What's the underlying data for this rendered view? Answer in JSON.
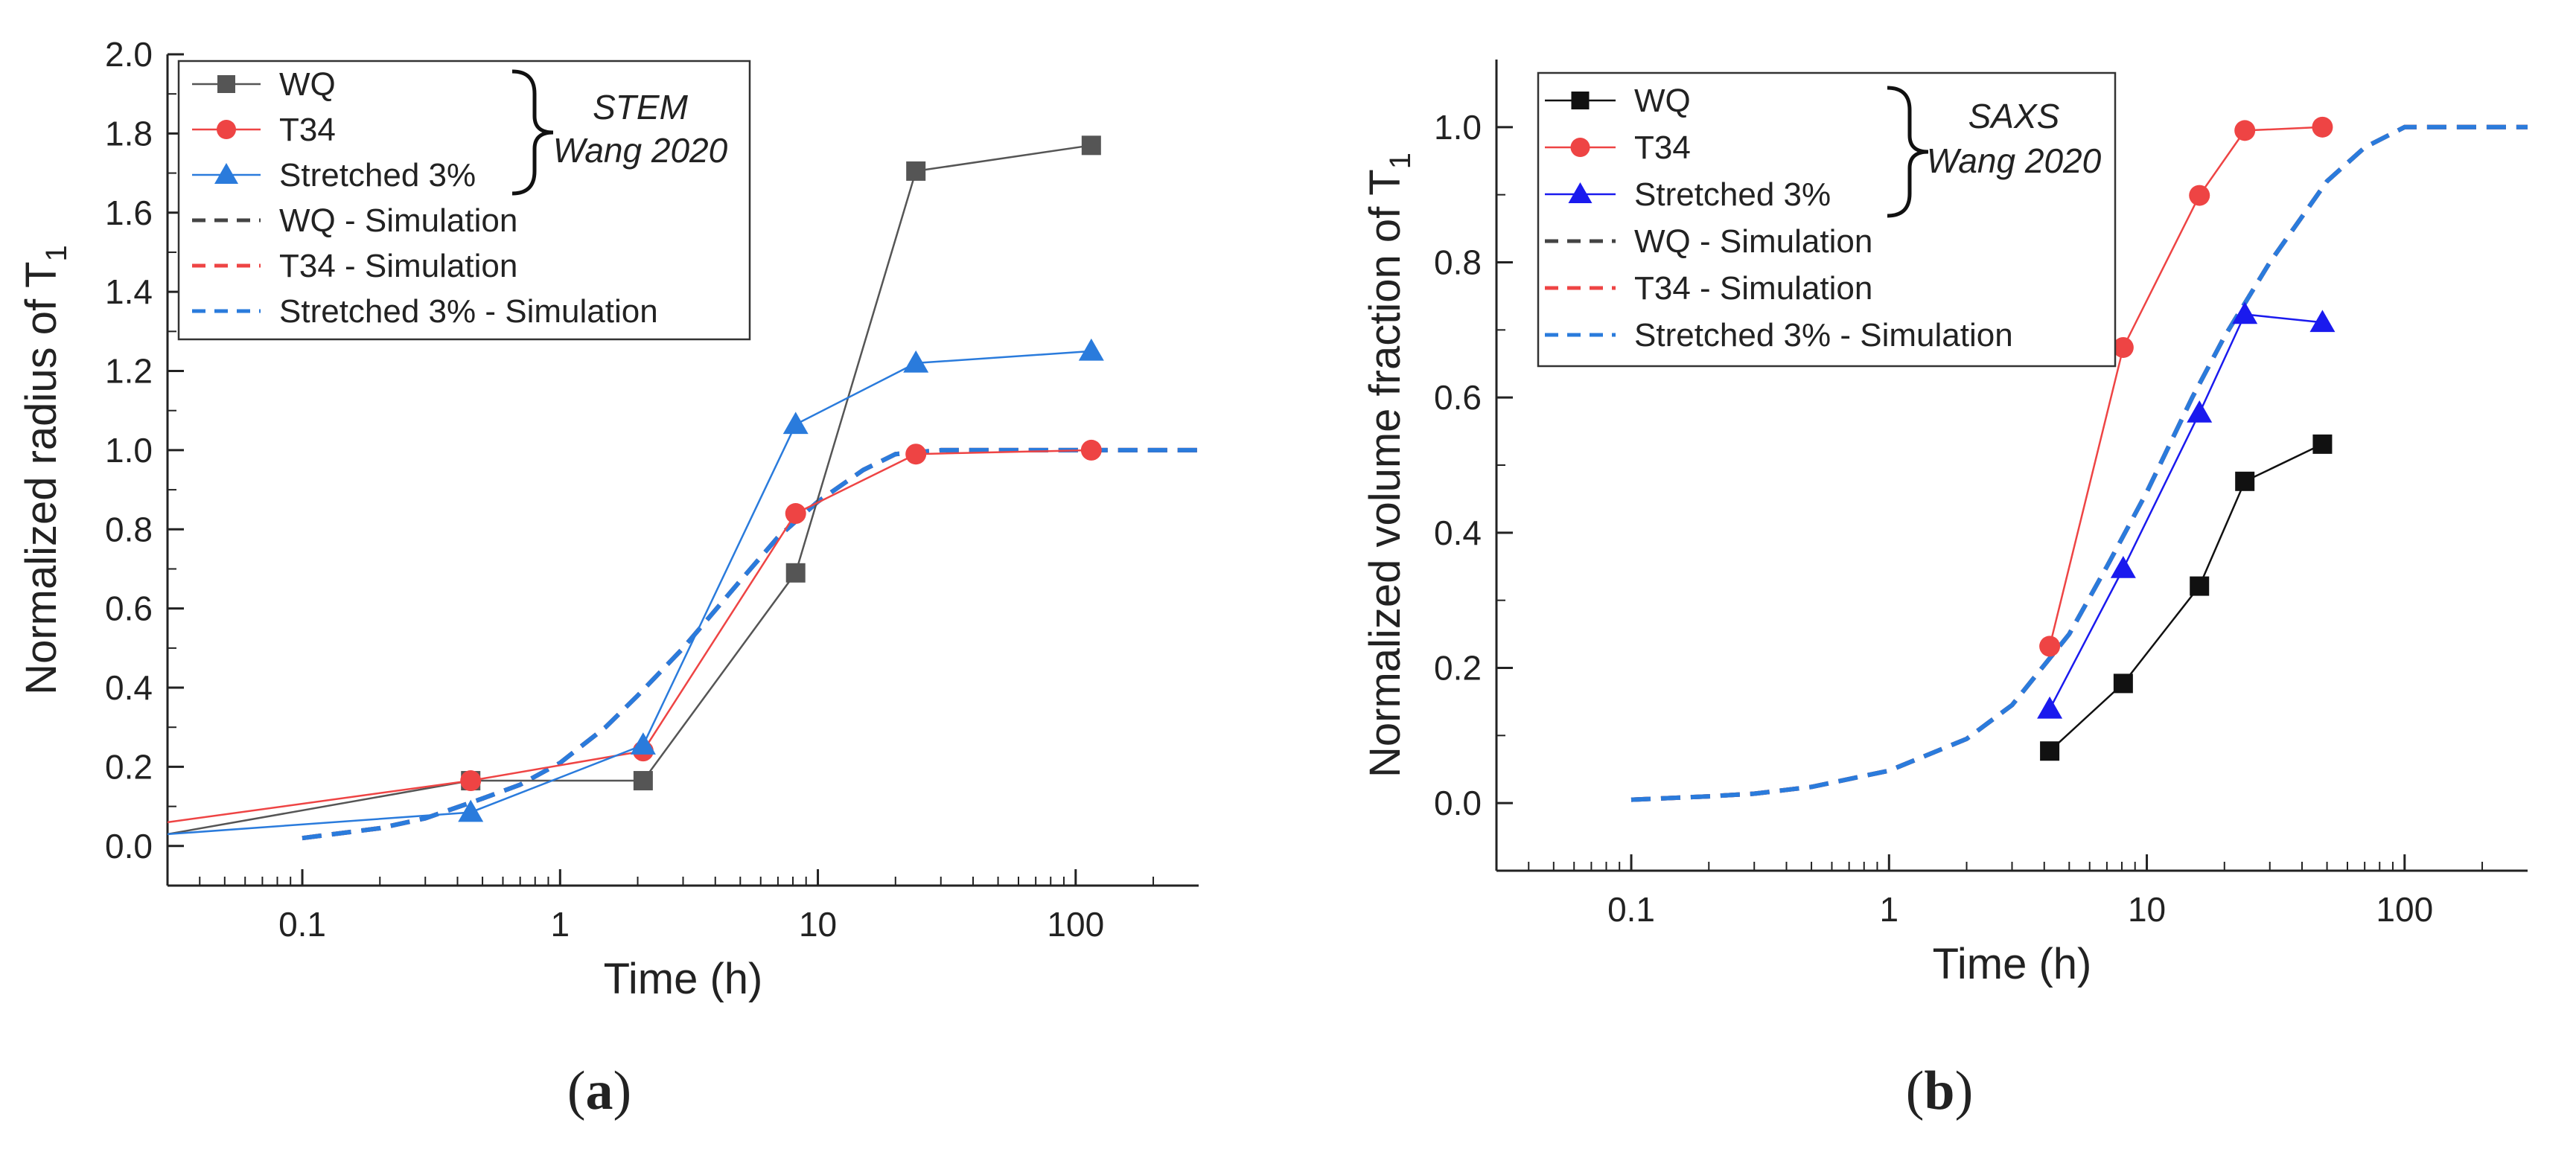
{
  "chart_data": [
    {
      "type": "line",
      "panel_label": "(a)",
      "xlabel": "Time (h)",
      "ylabel": "Normalized radius of T",
      "ylabel_subscript": "1",
      "xscale": "log",
      "xlim": [
        0.03,
        300
      ],
      "ylim": [
        -0.1,
        2.0
      ],
      "xticks": [
        "0.1",
        "1",
        "10",
        "100"
      ],
      "yticks": [
        "0.0",
        "0.2",
        "0.4",
        "0.6",
        "0.8",
        "1.0",
        "1.2",
        "1.4",
        "1.6",
        "1.8",
        "2.0"
      ],
      "legend_position": "top-left",
      "reference_label_1": "STEM",
      "reference_label_2": "Wang 2020",
      "series": [
        {
          "name": "WQ",
          "color": "#555555",
          "marker": "square",
          "style": "solid",
          "x": [
            0.03,
            0.45,
            2.1,
            8.2,
            24,
            115
          ],
          "y": [
            0.03,
            0.165,
            0.165,
            0.69,
            1.705,
            1.77
          ]
        },
        {
          "name": "T34",
          "color": "#ee4444",
          "marker": "circle",
          "style": "solid",
          "x": [
            0.03,
            0.45,
            2.1,
            8.2,
            24,
            115
          ],
          "y": [
            0.06,
            0.165,
            0.24,
            0.84,
            0.99,
            1.0
          ]
        },
        {
          "name": "Stretched 3%",
          "color": "#2a7bdc",
          "marker": "triangle",
          "style": "solid",
          "x": [
            0.03,
            0.45,
            2.1,
            8.2,
            24,
            115
          ],
          "y": [
            0.03,
            0.085,
            0.255,
            1.065,
            1.22,
            1.25
          ]
        },
        {
          "name": "WQ - Simulation",
          "color": "#444444",
          "marker": "none",
          "style": "dashed",
          "x": [
            0.1,
            0.2,
            0.3,
            0.5,
            0.7,
            1,
            1.5,
            2,
            3,
            5,
            7,
            10,
            15,
            20,
            30,
            50,
            100,
            300
          ],
          "y": [
            0.02,
            0.045,
            0.07,
            0.12,
            0.155,
            0.21,
            0.3,
            0.38,
            0.5,
            0.67,
            0.78,
            0.87,
            0.95,
            0.99,
            1.0,
            1.0,
            1.0,
            1.0
          ]
        },
        {
          "name": "T34 - Simulation",
          "color": "#ee4444",
          "marker": "none",
          "style": "dashed",
          "x": [
            0.1,
            0.2,
            0.3,
            0.5,
            0.7,
            1,
            1.5,
            2,
            3,
            5,
            7,
            10,
            15,
            20,
            30,
            50,
            100,
            300
          ],
          "y": [
            0.02,
            0.045,
            0.07,
            0.12,
            0.155,
            0.21,
            0.3,
            0.38,
            0.5,
            0.67,
            0.78,
            0.87,
            0.95,
            0.99,
            1.0,
            1.0,
            1.0,
            1.0
          ]
        },
        {
          "name": "Stretched 3% - Simulation",
          "color": "#2a7bdc",
          "marker": "none",
          "style": "dashed",
          "x": [
            0.1,
            0.2,
            0.3,
            0.5,
            0.7,
            1,
            1.5,
            2,
            3,
            5,
            7,
            10,
            15,
            20,
            30,
            50,
            100,
            300
          ],
          "y": [
            0.02,
            0.045,
            0.07,
            0.12,
            0.155,
            0.21,
            0.3,
            0.38,
            0.5,
            0.67,
            0.78,
            0.87,
            0.95,
            0.99,
            1.0,
            1.0,
            1.0,
            1.0
          ]
        }
      ]
    },
    {
      "type": "line",
      "panel_label": "(b)",
      "xlabel": "Time (h)",
      "ylabel": "Normalized volume fraction of T",
      "ylabel_subscript": "1",
      "xscale": "log",
      "xlim": [
        0.03,
        300
      ],
      "ylim": [
        -0.1,
        1.1
      ],
      "xticks": [
        "0.1",
        "1",
        "10",
        "100"
      ],
      "yticks": [
        "0.0",
        "0.2",
        "0.4",
        "0.6",
        "0.8",
        "1.0"
      ],
      "legend_position": "top-left",
      "reference_label_1": "SAXS",
      "reference_label_2": "Wang 2020",
      "series": [
        {
          "name": "WQ",
          "color": "#111111",
          "marker": "square",
          "style": "solid",
          "x": [
            4.2,
            8.1,
            16,
            24,
            48
          ],
          "y": [
            0.077,
            0.177,
            0.321,
            0.476,
            0.531
          ]
        },
        {
          "name": "T34",
          "color": "#ee4444",
          "marker": "circle",
          "style": "solid",
          "x": [
            4.2,
            8.1,
            16,
            24,
            48
          ],
          "y": [
            0.232,
            0.674,
            0.899,
            0.995,
            1.0
          ]
        },
        {
          "name": "Stretched 3%",
          "color": "#1a1aee",
          "marker": "triangle",
          "style": "solid",
          "x": [
            4.2,
            8.1,
            16,
            24,
            48
          ],
          "y": [
            0.139,
            0.347,
            0.577,
            0.723,
            0.711
          ]
        },
        {
          "name": "WQ - Simulation",
          "color": "#444444",
          "marker": "none",
          "style": "dashed",
          "x": [
            0.1,
            0.2,
            0.3,
            0.5,
            1,
            2,
            3,
            5,
            7,
            10,
            15,
            20,
            30,
            50,
            70,
            100,
            300
          ],
          "y": [
            0.005,
            0.01,
            0.014,
            0.024,
            0.048,
            0.095,
            0.145,
            0.25,
            0.35,
            0.46,
            0.6,
            0.69,
            0.8,
            0.92,
            0.97,
            1.0,
            1.0
          ]
        },
        {
          "name": "T34 - Simulation",
          "color": "#ee4444",
          "marker": "none",
          "style": "dashed",
          "x": [
            0.1,
            0.2,
            0.3,
            0.5,
            1,
            2,
            3,
            5,
            7,
            10,
            15,
            20,
            30,
            50,
            70,
            100,
            300
          ],
          "y": [
            0.005,
            0.01,
            0.014,
            0.024,
            0.048,
            0.095,
            0.145,
            0.25,
            0.35,
            0.46,
            0.6,
            0.69,
            0.8,
            0.92,
            0.97,
            1.0,
            1.0
          ]
        },
        {
          "name": "Stretched 3% - Simulation",
          "color": "#2a7bdc",
          "marker": "none",
          "style": "dashed",
          "x": [
            0.1,
            0.2,
            0.3,
            0.5,
            1,
            2,
            3,
            5,
            7,
            10,
            15,
            20,
            30,
            50,
            70,
            100,
            300
          ],
          "y": [
            0.005,
            0.01,
            0.014,
            0.024,
            0.048,
            0.095,
            0.145,
            0.25,
            0.35,
            0.46,
            0.6,
            0.69,
            0.8,
            0.92,
            0.97,
            1.0,
            1.0
          ]
        }
      ]
    }
  ]
}
